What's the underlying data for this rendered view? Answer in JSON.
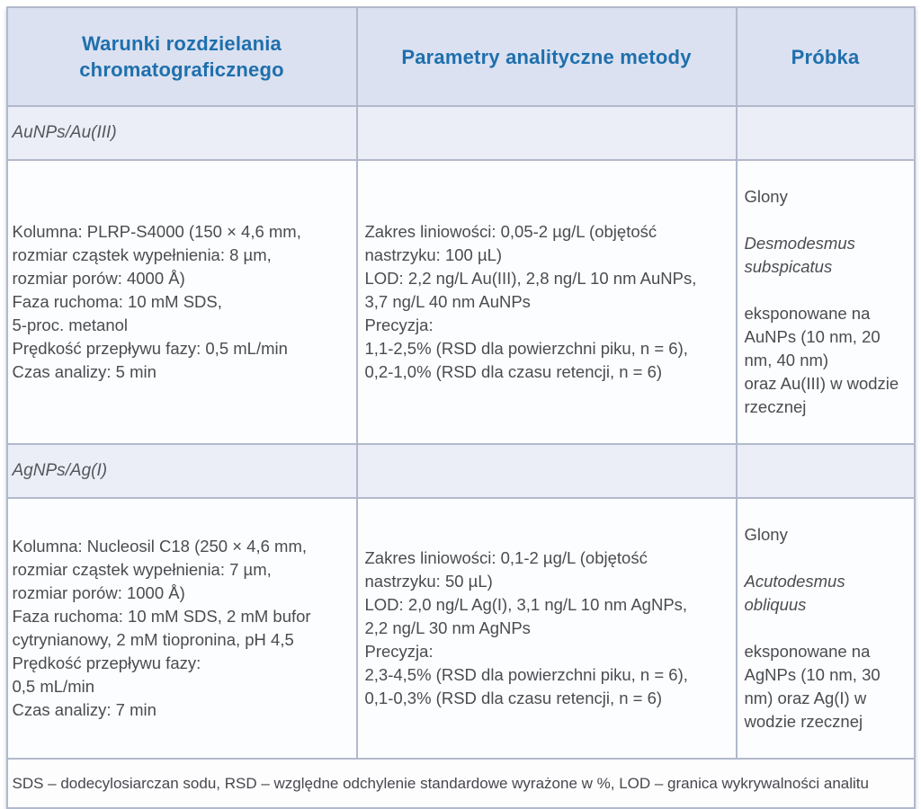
{
  "table": {
    "headers": [
      "Warunki rozdzielania\nchromatograficznego",
      "Parametry analityczne metody",
      "Próbka"
    ],
    "sections": [
      {
        "label": "AuNPs/Au(III)",
        "conditions": "Kolumna: PLRP-S4000 (150 × 4,6 mm,\nrozmiar cząstek wypełnienia: 8 µm,\nrozmiar porów: 4000 Å)\nFaza ruchoma: 10 mM SDS,\n5-proc. metanol\nPrędkość przepływu fazy: 0,5 mL/min\nCzas analizy: 5 min",
        "parameters": "Zakres liniowości: 0,05-2 µg/L (objętość\nnastrzyku: 100 µL)\nLOD: 2,2 ng/L Au(III), 2,8 ng/L 10 nm AuNPs,\n3,7 ng/L 40 nm AuNPs\nPrecyzja:\n1,1-2,5% (RSD dla powierzchni piku, n = 6),\n0,2-1,0% (RSD dla czasu retencji, n = 6)",
        "sample": {
          "organism": "Glony",
          "species": "Desmodesmus\nsubspicatus",
          "exposure": "eksponowane na\nAuNPs (10 nm, 20\nnm, 40 nm)\noraz Au(III) w wodzie\nrzecznej"
        }
      },
      {
        "label": "AgNPs/Ag(I)",
        "conditions": "Kolumna: Nucleosil C18 (250 × 4,6 mm,\nrozmiar cząstek wypełnienia: 7 µm,\nrozmiar porów: 1000 Å)\nFaza ruchoma: 10 mM SDS, 2 mM bufor\ncytrynianowy, 2 mM tiopronina, pH 4,5\nPrędkość przepływu fazy:\n0,5 mL/min\nCzas analizy: 7 min",
        "parameters": "Zakres liniowości: 0,1-2 µg/L (objętość\nnastrzyku: 50 µL)\nLOD: 2,0 ng/L Ag(I), 3,1 ng/L 10 nm AgNPs,\n2,2 ng/L 30 nm AgNPs\nPrecyzja:\n2,3-4,5% (RSD dla powierzchni piku, n = 6),\n0,1-0,3% (RSD dla czasu retencji, n = 6)",
        "sample": {
          "organism": "Glony",
          "species": "Acutodesmus\nobliquus",
          "exposure": "eksponowane na\nAgNPs (10 nm, 30\nnm) oraz Ag(I) w\nwodzie rzecznej"
        }
      }
    ],
    "footnote": "SDS – dodecylosiarczan sodu, RSD – względne odchylenie standardowe wyrażone w %, LOD – granica wykrywalności analitu",
    "colors": {
      "header_bg": "#dbe1f0",
      "section_bg": "#eceef7",
      "border": "#b2b9cc",
      "header_text": "#1f6fad",
      "body_text": "#4a4c51"
    }
  }
}
